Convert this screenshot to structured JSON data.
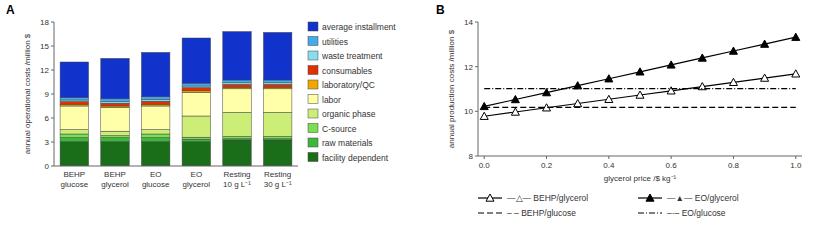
{
  "chart_data": [
    {
      "type": "bar",
      "title": "A",
      "stacked": true,
      "legend": "right",
      "categories": [
        "BEHP\nglucose",
        "BEHP\nglycerol",
        "EO\nglucose",
        "EO\nglycerol",
        "Resting\n10 g L⁻¹",
        "Resting\n30 g L⁻¹"
      ],
      "series": [
        {
          "name": "facility dependent",
          "color": "#1a6e1a",
          "values": [
            3.05,
            3.05,
            3.05,
            3.05,
            3.25,
            3.25
          ]
        },
        {
          "name": "raw materials",
          "color": "#3cb83c",
          "values": [
            0.5,
            0.5,
            0.5,
            0.3,
            0.15,
            0.15
          ]
        },
        {
          "name": "C-source",
          "color": "#7adf50",
          "values": [
            0.45,
            0.25,
            0.45,
            0.25,
            0.3,
            0.3
          ]
        },
        {
          "name": "organic phase",
          "color": "#ccee77",
          "values": [
            0.55,
            0.55,
            0.55,
            2.65,
            3.0,
            3.0
          ]
        },
        {
          "name": "labor",
          "color": "#ffffaa",
          "values": [
            2.95,
            2.95,
            2.95,
            2.95,
            2.95,
            2.95
          ]
        },
        {
          "name": "laboratory/QC",
          "color": "#f0a800",
          "values": [
            0.2,
            0.2,
            0.2,
            0.2,
            0.2,
            0.2
          ]
        },
        {
          "name": "consumables",
          "color": "#e03000",
          "values": [
            0.35,
            0.35,
            0.4,
            0.4,
            0.35,
            0.35
          ]
        },
        {
          "name": "waste treatment",
          "color": "#88ddee",
          "values": [
            0.2,
            0.2,
            0.2,
            0.2,
            0.2,
            0.2
          ]
        },
        {
          "name": "utilities",
          "color": "#44aaee",
          "values": [
            0.3,
            0.35,
            0.35,
            0.35,
            0.35,
            0.35
          ]
        },
        {
          "name": "average installment",
          "color": "#1133cc",
          "values": [
            4.45,
            5.05,
            5.55,
            5.65,
            6.05,
            5.95
          ]
        }
      ],
      "ylabel": "annual operational costs /million $",
      "ylim": [
        0,
        18
      ],
      "yticks": [
        0,
        3,
        6,
        9,
        12,
        15,
        18
      ]
    },
    {
      "type": "line",
      "title": "B",
      "legend": "bottom",
      "x": [
        0.0,
        0.1,
        0.2,
        0.3,
        0.4,
        0.5,
        0.6,
        0.7,
        0.8,
        0.9,
        1.0
      ],
      "series": [
        {
          "name": "—△— BEHP/glycerol",
          "color": "#000000",
          "marker": "triangle-open",
          "line_style": "solid",
          "values": [
            9.78,
            9.97,
            10.16,
            10.35,
            10.54,
            10.73,
            10.92,
            11.11,
            11.3,
            11.49,
            11.68
          ]
        },
        {
          "name": "—▲— EO/glycerol",
          "color": "#000000",
          "marker": "triangle",
          "line_style": "solid",
          "values": [
            10.22,
            10.53,
            10.84,
            11.15,
            11.46,
            11.77,
            12.08,
            12.39,
            12.7,
            13.01,
            13.32
          ]
        },
        {
          "name": "– – BEHP/glucose",
          "color": "#000000",
          "line_style": "dashed",
          "values": [
            10.18,
            10.18,
            10.18,
            10.18,
            10.18,
            10.18,
            10.18,
            10.18,
            10.18,
            10.18,
            10.18
          ]
        },
        {
          "name": "–·– EO/glucose",
          "color": "#000000",
          "line_style": "dashdot",
          "values": [
            11.02,
            11.02,
            11.02,
            11.02,
            11.02,
            11.02,
            11.02,
            11.02,
            11.02,
            11.02,
            11.02
          ]
        }
      ],
      "xlabel": "glycerol price /$ kg⁻¹",
      "ylabel": "annual production costs /million $",
      "xlim": [
        -0.02,
        1.02
      ],
      "xticks": [
        {
          "value": 0,
          "label": "0.0"
        },
        0.2,
        0.4,
        0.6,
        0.8,
        {
          "value": 1,
          "label": "1.0"
        }
      ],
      "ylim": [
        8,
        14
      ],
      "yticks": [
        8,
        10,
        12,
        14
      ]
    }
  ]
}
